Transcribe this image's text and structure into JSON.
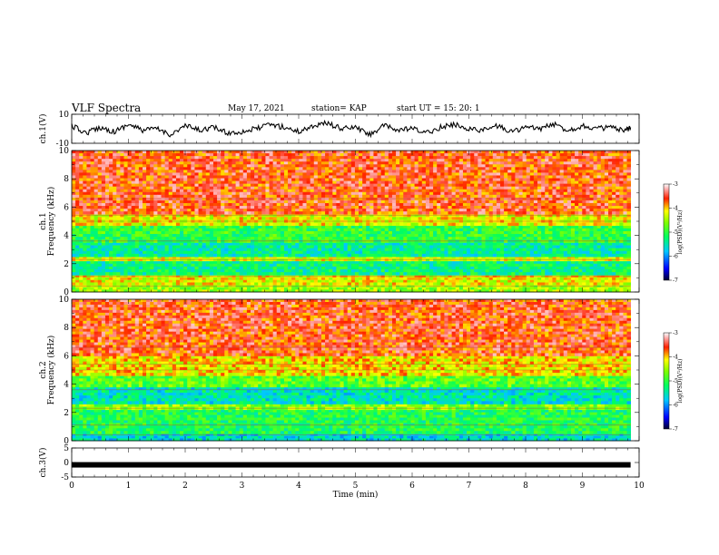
{
  "header": {
    "title": "VLF Spectra",
    "date": "May 17, 2021",
    "station": "station= KAP",
    "start": "start  UT  =   15: 20: 1"
  },
  "colors": {
    "spectrogram_low": "#00a0ff",
    "spectrogram_mid": "#00e000",
    "spectrogram_high": "#ff2a1a",
    "trace": "#000000"
  },
  "chart_data": [
    {
      "type": "line",
      "name": "ch1-waveform",
      "ylabel": "ch.1(V)",
      "ylim": [
        -10,
        10
      ],
      "y_ticks": [
        "10",
        "-10"
      ],
      "xlim": [
        0,
        10
      ],
      "x_ticks": [
        "0",
        "1",
        "2",
        "3",
        "4",
        "5",
        "6",
        "7",
        "8",
        "9",
        "10"
      ],
      "xlabel": "Time  (min)",
      "data_end_min": 9.85,
      "x": [
        0,
        0.25,
        0.5,
        0.75,
        1,
        1.25,
        1.5,
        1.75,
        2,
        2.25,
        2.5,
        2.75,
        3,
        3.25,
        3.5,
        3.75,
        4,
        4.25,
        4.5,
        4.75,
        5,
        5.25,
        5.5,
        5.75,
        6,
        6.25,
        6.5,
        6.75,
        7,
        7.25,
        7.5,
        7.75,
        8,
        8.25,
        8.5,
        8.75,
        9,
        9.25,
        9.5,
        9.75,
        9.85
      ],
      "values": [
        2,
        -3,
        1,
        -2,
        3,
        -1,
        0,
        -4,
        2,
        -1,
        1,
        -3,
        -2,
        0,
        3,
        1,
        -2,
        2,
        4,
        0,
        1,
        -4,
        2,
        -1,
        0,
        -3,
        1,
        3,
        0,
        -1,
        2,
        -2,
        1,
        0,
        3,
        -1,
        2,
        0,
        1,
        -2,
        1
      ]
    },
    {
      "type": "heatmap",
      "name": "ch1-spectrogram",
      "ylabel": "ch.1\nFrequency  (kHz)",
      "ylim": [
        0,
        10
      ],
      "y_ticks": [
        "0",
        "2",
        "4",
        "6",
        "8",
        "10"
      ],
      "xlim": [
        0,
        10
      ],
      "x_ticks": [
        "0",
        "1",
        "2",
        "3",
        "4",
        "5",
        "6",
        "7",
        "8",
        "9",
        "10"
      ],
      "data_end_min": 9.85,
      "bands_khz": [
        {
          "from": 0,
          "to": 0.5,
          "level": -4.5
        },
        {
          "from": 0.5,
          "to": 1.2,
          "level": -4.2
        },
        {
          "from": 1.2,
          "to": 2.2,
          "level": -5.3
        },
        {
          "from": 2.2,
          "to": 2.5,
          "level": -4.3
        },
        {
          "from": 2.5,
          "to": 3.5,
          "level": -5.4
        },
        {
          "from": 3.5,
          "to": 4.7,
          "level": -5.0
        },
        {
          "from": 4.7,
          "to": 5.5,
          "level": -4.2
        },
        {
          "from": 5.5,
          "to": 10,
          "level": -3.6
        }
      ],
      "colorbar": {
        "label": "log(PSD)(V²/Hz)",
        "range": [
          -7,
          -3
        ],
        "ticks": [
          "-3",
          "-4",
          "-5",
          "-6",
          "-7"
        ]
      }
    },
    {
      "type": "heatmap",
      "name": "ch2-spectrogram",
      "ylabel": "ch.2\nFrequency  (kHz)",
      "ylim": [
        0,
        10
      ],
      "y_ticks": [
        "0",
        "2",
        "4",
        "6",
        "8",
        "10"
      ],
      "xlim": [
        0,
        10
      ],
      "x_ticks": [
        "0",
        "1",
        "2",
        "3",
        "4",
        "5",
        "6",
        "7",
        "8",
        "9",
        "10"
      ],
      "data_end_min": 9.85,
      "bands_khz": [
        {
          "from": 0,
          "to": 0.5,
          "level": -5.6
        },
        {
          "from": 0.5,
          "to": 2.2,
          "level": -5.1
        },
        {
          "from": 2.2,
          "to": 2.6,
          "level": -4.6
        },
        {
          "from": 2.6,
          "to": 3.8,
          "level": -5.5
        },
        {
          "from": 3.8,
          "to": 4.6,
          "level": -4.8
        },
        {
          "from": 4.6,
          "to": 6.0,
          "level": -4.1
        },
        {
          "from": 6.0,
          "to": 10,
          "level": -3.6
        }
      ],
      "colorbar": {
        "label": "log(PSD)(V²/Hz)",
        "range": [
          -7,
          -3
        ],
        "ticks": [
          "-3",
          "-4",
          "-5",
          "-6",
          "-7"
        ]
      }
    },
    {
      "type": "line",
      "name": "ch3-waveform",
      "ylabel": "ch.3(V)",
      "ylim": [
        -5,
        5
      ],
      "y_ticks": [
        "5",
        "0",
        "-5"
      ],
      "xlim": [
        0,
        10
      ],
      "x_ticks": [
        "0",
        "1",
        "2",
        "3",
        "4",
        "5",
        "6",
        "7",
        "8",
        "9",
        "10"
      ],
      "xlabel": "Time  (min)",
      "data_end_min": 9.85,
      "x": [
        0,
        9.85
      ],
      "values": [
        -0.8,
        -0.8
      ]
    }
  ]
}
